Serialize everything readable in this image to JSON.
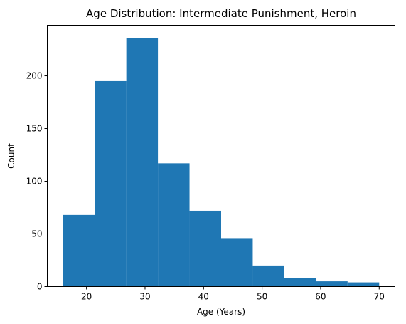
{
  "chart_data": {
    "type": "bar",
    "title": "Age Distribution: Intermediate Punishment, Heroin",
    "xlabel": "Age (Years)",
    "ylabel": "Count",
    "xlim": [
      13.3,
      72.7
    ],
    "ylim": [
      0,
      248
    ],
    "bin_edges": [
      16.0,
      21.4,
      26.8,
      32.2,
      37.6,
      43.0,
      48.4,
      53.8,
      59.2,
      64.6,
      70.0
    ],
    "values": [
      68,
      195,
      236,
      117,
      72,
      46,
      20,
      8,
      5,
      4
    ],
    "xticks": [
      20,
      30,
      40,
      50,
      60,
      70
    ],
    "yticks": [
      0,
      50,
      100,
      150,
      200
    ],
    "bar_color": "#1f77b4",
    "grid": false,
    "legend": "none"
  }
}
